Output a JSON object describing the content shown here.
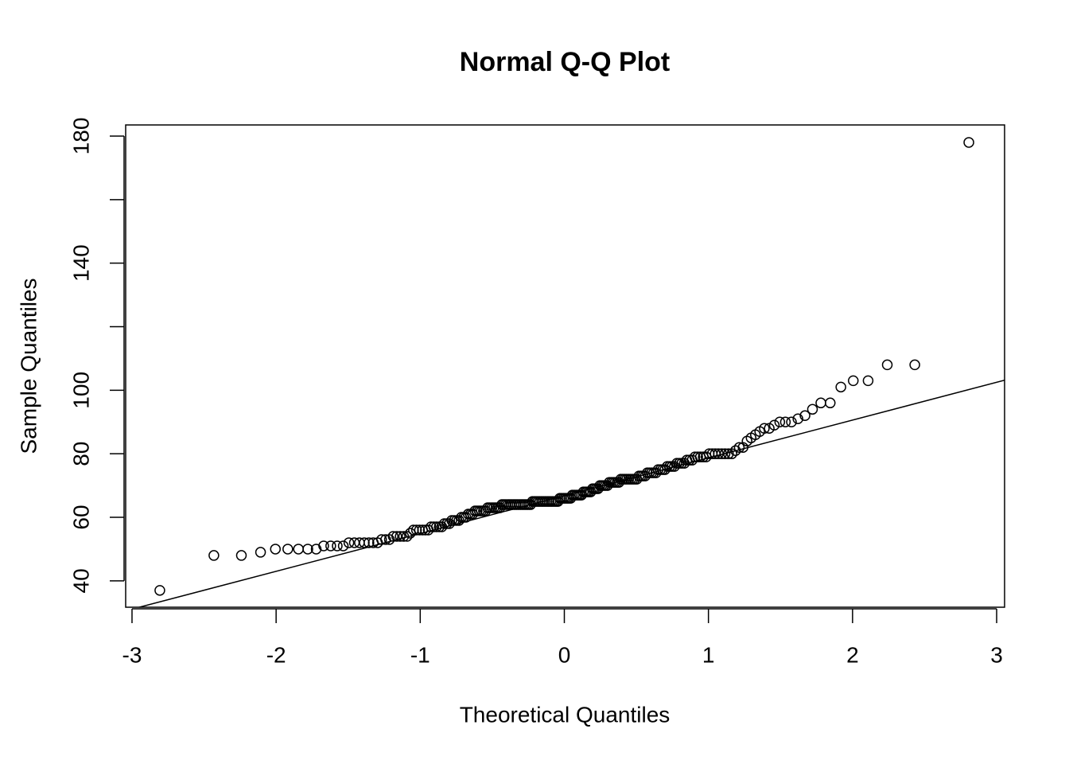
{
  "chart_data": {
    "type": "scatter",
    "title": "Normal Q-Q Plot",
    "x_label": "Theoretical Quantiles",
    "y_label": "Sample Quantiles",
    "xlim": [
      -3.044,
      3.055
    ],
    "ylim": [
      31.7,
      183.5
    ],
    "xticks": [
      -3,
      -2,
      -1,
      0,
      1,
      2,
      3
    ],
    "yticks": [
      40,
      60,
      80,
      100,
      140,
      180
    ],
    "yticks_unlabeled": [
      120,
      160
    ],
    "color": "#000000",
    "reference_line": {
      "intercept": 66.8,
      "slope": 11.9
    },
    "x": [
      -2.807,
      -2.432,
      -2.241,
      -2.108,
      -2.005,
      -1.919,
      -1.845,
      -1.78,
      -1.722,
      -1.67,
      -1.621,
      -1.576,
      -1.534,
      -1.495,
      -1.457,
      -1.422,
      -1.388,
      -1.356,
      -1.326,
      -1.296,
      -1.268,
      -1.24,
      -1.214,
      -1.188,
      -1.163,
      -1.139,
      -1.115,
      -1.092,
      -1.069,
      -1.047,
      -1.026,
      -1.005,
      -0.984,
      -0.964,
      -0.944,
      -0.925,
      -0.906,
      -0.887,
      -0.868,
      -0.85,
      -0.833,
      -0.815,
      -0.798,
      -0.781,
      -0.764,
      -0.747,
      -0.731,
      -0.714,
      -0.698,
      -0.683,
      -0.667,
      -0.651,
      -0.636,
      -0.62,
      -0.605,
      -0.59,
      -0.576,
      -0.561,
      -0.546,
      -0.532,
      -0.518,
      -0.503,
      -0.489,
      -0.475,
      -0.461,
      -0.447,
      -0.433,
      -0.42,
      -0.406,
      -0.392,
      -0.379,
      -0.366,
      -0.352,
      -0.339,
      -0.326,
      -0.312,
      -0.299,
      -0.286,
      -0.273,
      -0.26,
      -0.247,
      -0.234,
      -0.221,
      -0.208,
      -0.196,
      -0.183,
      -0.17,
      -0.157,
      -0.145,
      -0.132,
      -0.119,
      -0.107,
      -0.094,
      -0.082,
      -0.069,
      -0.056,
      -0.044,
      -0.031,
      -0.019,
      -0.006,
      0.006,
      0.019,
      0.031,
      0.044,
      0.056,
      0.069,
      0.082,
      0.094,
      0.107,
      0.119,
      0.132,
      0.145,
      0.157,
      0.17,
      0.183,
      0.196,
      0.208,
      0.221,
      0.234,
      0.247,
      0.26,
      0.273,
      0.286,
      0.299,
      0.312,
      0.326,
      0.339,
      0.352,
      0.366,
      0.379,
      0.392,
      0.406,
      0.42,
      0.433,
      0.447,
      0.461,
      0.475,
      0.489,
      0.503,
      0.518,
      0.532,
      0.546,
      0.561,
      0.576,
      0.59,
      0.605,
      0.62,
      0.636,
      0.651,
      0.667,
      0.683,
      0.698,
      0.714,
      0.731,
      0.747,
      0.764,
      0.781,
      0.798,
      0.815,
      0.833,
      0.85,
      0.868,
      0.887,
      0.906,
      0.925,
      0.944,
      0.964,
      0.984,
      1.005,
      1.026,
      1.047,
      1.069,
      1.092,
      1.115,
      1.139,
      1.163,
      1.188,
      1.214,
      1.24,
      1.268,
      1.296,
      1.326,
      1.356,
      1.388,
      1.422,
      1.457,
      1.495,
      1.534,
      1.576,
      1.621,
      1.67,
      1.722,
      1.78,
      1.845,
      1.919,
      2.005,
      2.108,
      2.241,
      2.432,
      2.807
    ],
    "values": [
      37,
      48,
      48,
      49,
      50,
      50,
      50,
      50,
      50,
      51,
      51,
      51,
      51,
      52,
      52,
      52,
      52,
      52,
      52,
      52,
      53,
      53,
      53,
      54,
      54,
      54,
      54,
      54,
      55,
      56,
      56,
      56,
      56,
      56,
      56,
      57,
      57,
      57,
      57,
      57,
      58,
      58,
      58,
      59,
      59,
      59,
      59,
      60,
      60,
      60,
      61,
      61,
      61,
      62,
      62,
      62,
      62,
      62,
      62,
      63,
      63,
      63,
      63,
      63,
      63,
      63,
      64,
      64,
      64,
      64,
      64,
      64,
      64,
      64,
      64,
      64,
      64,
      64,
      64,
      64,
      64,
      64,
      65,
      65,
      65,
      65,
      65,
      65,
      65,
      65,
      65,
      65,
      65,
      65,
      65,
      65,
      65,
      66,
      66,
      66,
      66,
      66,
      66,
      66,
      67,
      67,
      67,
      67,
      67,
      67,
      68,
      68,
      68,
      68,
      68,
      69,
      69,
      69,
      69,
      70,
      70,
      70,
      70,
      70,
      71,
      71,
      71,
      71,
      71,
      71,
      72,
      72,
      72,
      72,
      72,
      72,
      72,
      72,
      72,
      73,
      73,
      73,
      73,
      74,
      74,
      74,
      74,
      74,
      75,
      75,
      75,
      75,
      76,
      76,
      76,
      76,
      77,
      77,
      77,
      77,
      78,
      78,
      78,
      79,
      79,
      79,
      79,
      79,
      80,
      80,
      80,
      80,
      80,
      80,
      80,
      80,
      81,
      82,
      82,
      84,
      85,
      86,
      87,
      88,
      88,
      89,
      90,
      90,
      90,
      91,
      92,
      94,
      96,
      96,
      101,
      103,
      103,
      108,
      108,
      178
    ]
  }
}
